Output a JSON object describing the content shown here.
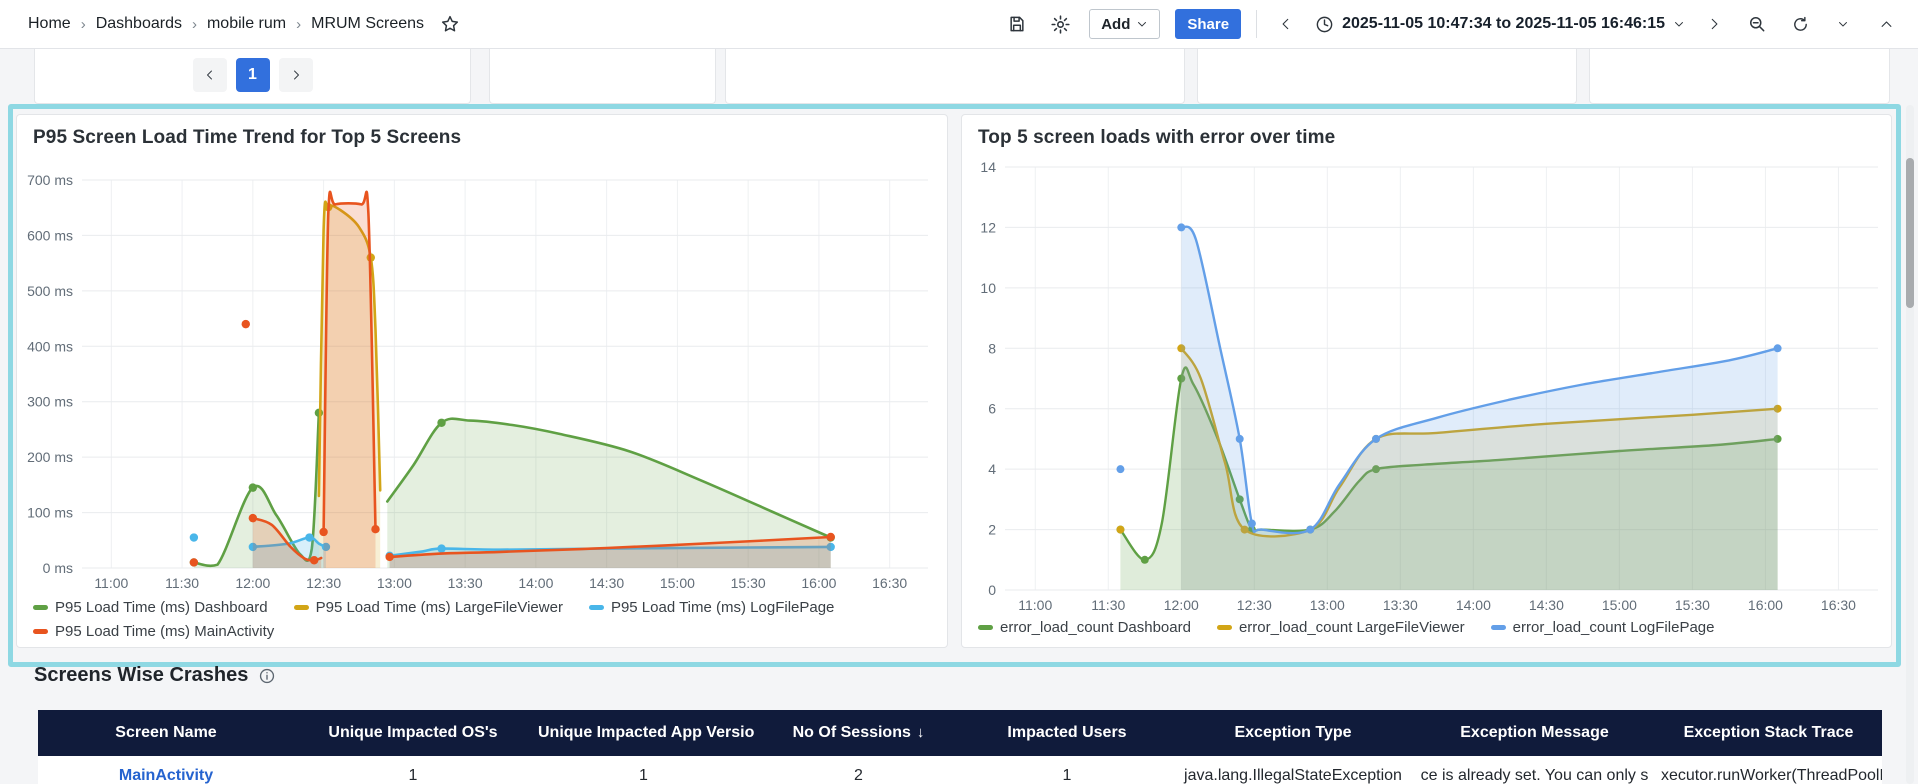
{
  "topbar": {
    "breadcrumbs": [
      "Home",
      "Dashboards",
      "mobile rum",
      "MRUM Screens"
    ],
    "breadcrumb_separator": "›",
    "add_label": "Add",
    "share_label": "Share",
    "time_range": "2025-11-05 10:47:34 to 2025-11-05 16:46:15"
  },
  "pagination": {
    "current_page": "1"
  },
  "colors": {
    "highlight_border": "#8ed8e3",
    "table_header_bg": "#101b3b",
    "link": "#2563cf",
    "primary_button": "#3270dd"
  },
  "crash_table": {
    "title": "Screens Wise Crashes",
    "columns": [
      {
        "label": "Screen Name"
      },
      {
        "label": "Unique Impacted OS's"
      },
      {
        "label": "Unique Impacted App Versio"
      },
      {
        "label": "No Of Sessions",
        "sort_arrow": "↓"
      },
      {
        "label": "Impacted Users"
      },
      {
        "label": "Exception Type"
      },
      {
        "label": "Exception Message"
      },
      {
        "label": "Exception Stack Trace"
      }
    ],
    "rows": [
      [
        "MainActivity",
        "1",
        "1",
        "2",
        "1",
        "java.lang.IllegalStateException",
        "ce is already set. You can only s",
        "xecutor.runWorker(ThreadPoolE"
      ]
    ]
  },
  "chart_data": [
    {
      "type": "area",
      "title": "P95 Screen Load Time Trend for Top 5 Screens",
      "x_range": [
        "10:47:34",
        "16:46:15"
      ],
      "x_ticks": [
        "11:00",
        "11:30",
        "12:00",
        "12:30",
        "13:00",
        "13:30",
        "14:00",
        "14:30",
        "15:00",
        "15:30",
        "16:00",
        "16:30"
      ],
      "y_range": [
        0,
        700
      ],
      "y_tick_values": [
        0,
        100,
        200,
        300,
        400,
        500,
        600,
        700
      ],
      "y_tick_labels": [
        "0 ms",
        "100 ms",
        "200 ms",
        "300 ms",
        "400 ms",
        "500 ms",
        "600 ms",
        "700 ms"
      ],
      "grid": true,
      "legend_position": "bottom",
      "series": [
        {
          "name": "P95 Load Time (ms) Dashboard",
          "color": "#5fa044",
          "fill": "rgba(95,160,68,0.17)",
          "segments": [
            [
              [
                "11:35",
                10
              ],
              [
                "11:45",
                6
              ],
              [
                "12:00",
                145
              ],
              [
                "12:10",
                95
              ],
              [
                "12:20",
                25
              ],
              [
                "12:25",
                35
              ],
              [
                "12:28",
                280
              ]
            ],
            [
              [
                "12:57",
                120
              ],
              [
                "13:08",
                185
              ],
              [
                "13:20",
                262
              ],
              [
                "13:32",
                266
              ],
              [
                "13:50",
                258
              ],
              [
                "14:10",
                242
              ],
              [
                "14:40",
                210
              ],
              [
                "15:10",
                158
              ],
              [
                "15:40",
                102
              ],
              [
                "16:05",
                55
              ]
            ]
          ],
          "dots": [
            [
              "11:35",
              10
            ],
            [
              "12:00",
              145
            ],
            [
              "12:28",
              280
            ],
            [
              "13:20",
              262
            ],
            [
              "16:05",
              55
            ]
          ]
        },
        {
          "name": "P95 Load Time (ms) LargeFileViewer",
          "color": "#d2a516",
          "fill": "rgba(210,165,22,0.18)",
          "segments": [
            [
              [
                "12:28",
                130
              ],
              [
                "12:30",
                610
              ],
              [
                "12:32",
                651
              ],
              [
                "12:37",
                646
              ],
              [
                "12:45",
                615
              ],
              [
                "12:50",
                560
              ],
              [
                "12:52",
                430
              ],
              [
                "12:54",
                140
              ]
            ]
          ],
          "dots": [
            [
              "12:32",
              651
            ],
            [
              "12:50",
              560
            ]
          ]
        },
        {
          "name": "P95 Load Time (ms) LogFilePage",
          "color": "#49b6e9",
          "fill": "rgba(73,182,233,0.22)",
          "segments": [
            [
              [
                "12:00",
                38
              ],
              [
                "12:15",
                44
              ],
              [
                "12:24",
                55
              ],
              [
                "12:28",
                44
              ],
              [
                "12:31",
                38
              ]
            ],
            [
              [
                "12:58",
                22
              ],
              [
                "13:12",
                30
              ],
              [
                "13:20",
                35
              ],
              [
                "13:45",
                33
              ],
              [
                "14:30",
                35
              ],
              [
                "15:30",
                37
              ],
              [
                "16:05",
                38
              ]
            ]
          ],
          "dots": [
            [
              "11:35",
              55
            ],
            [
              "12:00",
              38
            ],
            [
              "12:24",
              55
            ],
            [
              "12:31",
              38
            ],
            [
              "12:58",
              22
            ],
            [
              "13:20",
              35
            ],
            [
              "16:05",
              38
            ]
          ]
        },
        {
          "name": "P95 Load Time (ms) MainActivity",
          "color": "#e8541f",
          "fill": "rgba(232,84,31,0.20)",
          "segments": [
            [
              [
                "12:00",
                90
              ],
              [
                "12:08",
                78
              ],
              [
                "12:16",
                38
              ],
              [
                "12:22",
                17
              ],
              [
                "12:26",
                14
              ],
              [
                "12:29",
                18
              ]
            ],
            [
              [
                "12:30",
                65
              ],
              [
                "12:32",
                640
              ],
              [
                "12:35",
                656
              ],
              [
                "12:46",
                656
              ],
              [
                "12:49",
                640
              ],
              [
                "12:52",
                70
              ]
            ],
            [
              [
                "12:58",
                20
              ],
              [
                "13:20",
                26
              ],
              [
                "13:45",
                29
              ],
              [
                "14:30",
                36
              ],
              [
                "15:20",
                46
              ],
              [
                "16:05",
                56
              ]
            ]
          ],
          "dots": [
            [
              "11:35",
              10
            ],
            [
              "11:57",
              440
            ],
            [
              "12:00",
              90
            ],
            [
              "12:26",
              14
            ],
            [
              "12:30",
              65
            ],
            [
              "12:52",
              70
            ],
            [
              "12:58",
              20
            ],
            [
              "16:05",
              56
            ]
          ]
        }
      ]
    },
    {
      "type": "area",
      "title": "Top 5 screen loads with error over time",
      "x_range": [
        "10:47:34",
        "16:46:15"
      ],
      "x_ticks": [
        "11:00",
        "11:30",
        "12:00",
        "12:30",
        "13:00",
        "13:30",
        "14:00",
        "14:30",
        "15:00",
        "15:30",
        "16:00",
        "16:30"
      ],
      "y_range": [
        0,
        14
      ],
      "y_tick_values": [
        0,
        2,
        4,
        6,
        8,
        10,
        12,
        14
      ],
      "y_tick_labels": [
        "0",
        "2",
        "4",
        "6",
        "8",
        "10",
        "12",
        "14"
      ],
      "grid": true,
      "legend_position": "bottom",
      "series": [
        {
          "name": "error_load_count Dashboard",
          "color": "#5fa044",
          "fill": "rgba(95,160,68,0.20)",
          "segments": [
            [
              [
                "11:35",
                2
              ],
              [
                "11:45",
                1
              ],
              [
                "11:52",
                2.2
              ],
              [
                "12:00",
                7
              ],
              [
                "12:05",
                6.8
              ],
              [
                "12:15",
                5
              ],
              [
                "12:24",
                3
              ],
              [
                "12:29",
                2
              ],
              [
                "12:33",
                2
              ],
              [
                "12:53",
                2
              ],
              [
                "13:03",
                2.6
              ],
              [
                "13:13",
                3.6
              ],
              [
                "13:20",
                4
              ],
              [
                "13:40",
                4.15
              ],
              [
                "14:10",
                4.3
              ],
              [
                "15:00",
                4.6
              ],
              [
                "15:40",
                4.8
              ],
              [
                "16:05",
                5
              ]
            ]
          ],
          "dots": [
            [
              "11:35",
              2
            ],
            [
              "11:45",
              1
            ],
            [
              "12:00",
              7
            ],
            [
              "12:24",
              3
            ],
            [
              "12:29",
              2
            ],
            [
              "12:53",
              2
            ],
            [
              "13:20",
              4
            ],
            [
              "16:05",
              5
            ]
          ]
        },
        {
          "name": "error_load_count LargeFileViewer",
          "color": "#d2a516",
          "fill": "rgba(210,165,22,0.16)",
          "segments": [
            [
              [
                "12:00",
                8
              ],
              [
                "12:08",
                7
              ],
              [
                "12:18",
                4.2
              ],
              [
                "12:26",
                2
              ],
              [
                "12:53",
                2
              ],
              [
                "13:05",
                3.4
              ],
              [
                "13:20",
                5
              ],
              [
                "13:45",
                5.2
              ],
              [
                "14:30",
                5.5
              ],
              [
                "15:30",
                5.8
              ],
              [
                "16:05",
                6
              ]
            ]
          ],
          "dots": [
            [
              "11:35",
              2
            ],
            [
              "12:00",
              8
            ],
            [
              "12:26",
              2
            ],
            [
              "13:20",
              5
            ],
            [
              "16:05",
              6
            ]
          ]
        },
        {
          "name": "error_load_count LogFilePage",
          "color": "#639fe8",
          "fill": "rgba(99,159,232,0.20)",
          "segments": [
            [
              [
                "12:00",
                12
              ],
              [
                "12:06",
                11.6
              ],
              [
                "12:16",
                8
              ],
              [
                "12:24",
                5
              ],
              [
                "12:29",
                2.2
              ],
              [
                "12:33",
                2
              ],
              [
                "12:53",
                2
              ],
              [
                "13:05",
                3.5
              ],
              [
                "13:20",
                5
              ],
              [
                "13:45",
                5.7
              ],
              [
                "14:15",
                6.3
              ],
              [
                "14:45",
                6.8
              ],
              [
                "15:15",
                7.2
              ],
              [
                "15:45",
                7.6
              ],
              [
                "16:05",
                8
              ]
            ]
          ],
          "dots": [
            [
              "11:35",
              4
            ],
            [
              "12:00",
              12
            ],
            [
              "12:24",
              5
            ],
            [
              "12:29",
              2.2
            ],
            [
              "12:53",
              2
            ],
            [
              "13:20",
              5
            ],
            [
              "16:05",
              8
            ]
          ]
        }
      ]
    }
  ]
}
